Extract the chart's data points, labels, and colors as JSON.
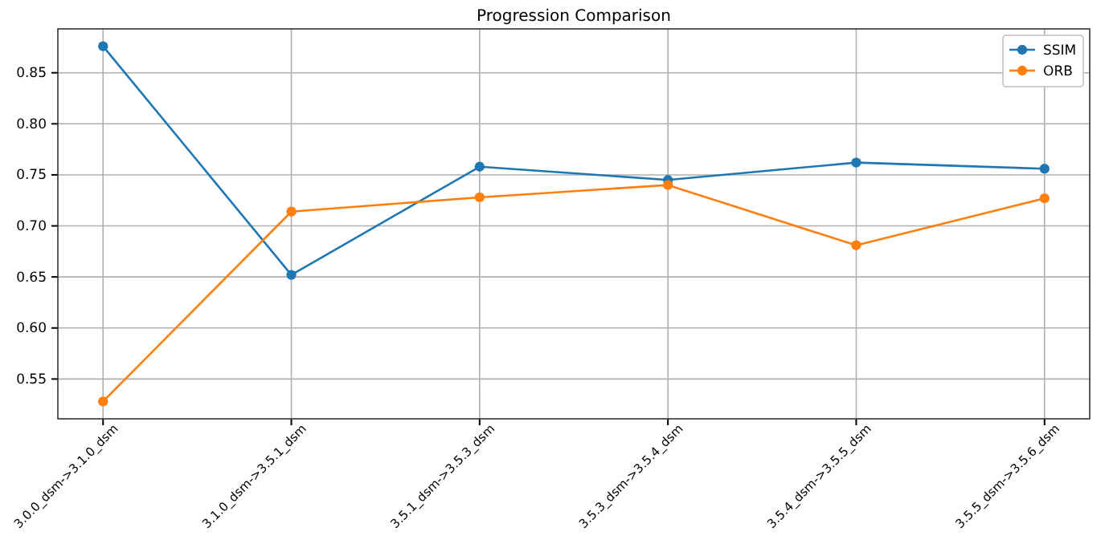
{
  "chart_data": {
    "type": "line",
    "title": "Progression Comparison",
    "categories": [
      "3.0.0_dsm->3.1.0_dsm",
      "3.1.0_dsm->3.5.1_dsm",
      "3.5.1_dsm->3.5.3_dsm",
      "3.5.3_dsm->3.5.4_dsm",
      "3.5.4_dsm->3.5.5_dsm",
      "3.5.5_dsm->3.5.6_dsm"
    ],
    "series": [
      {
        "name": "SSIM",
        "color": "#1f77b4",
        "values": [
          0.876,
          0.652,
          0.758,
          0.745,
          0.762,
          0.756
        ]
      },
      {
        "name": "ORB",
        "color": "#ff7f0e",
        "values": [
          0.528,
          0.714,
          0.728,
          0.74,
          0.681,
          0.727
        ]
      }
    ],
    "ylim": [
      0.511,
      0.893
    ],
    "yticks": [
      {
        "value": 0.55,
        "label": "0.55"
      },
      {
        "value": 0.6,
        "label": "0.60"
      },
      {
        "value": 0.65,
        "label": "0.65"
      },
      {
        "value": 0.7,
        "label": "0.70"
      },
      {
        "value": 0.75,
        "label": "0.75"
      },
      {
        "value": 0.8,
        "label": "0.80"
      },
      {
        "value": 0.85,
        "label": "0.85"
      }
    ],
    "grid": true,
    "legend": "top right",
    "marker": "circle",
    "line_style": "solid"
  }
}
